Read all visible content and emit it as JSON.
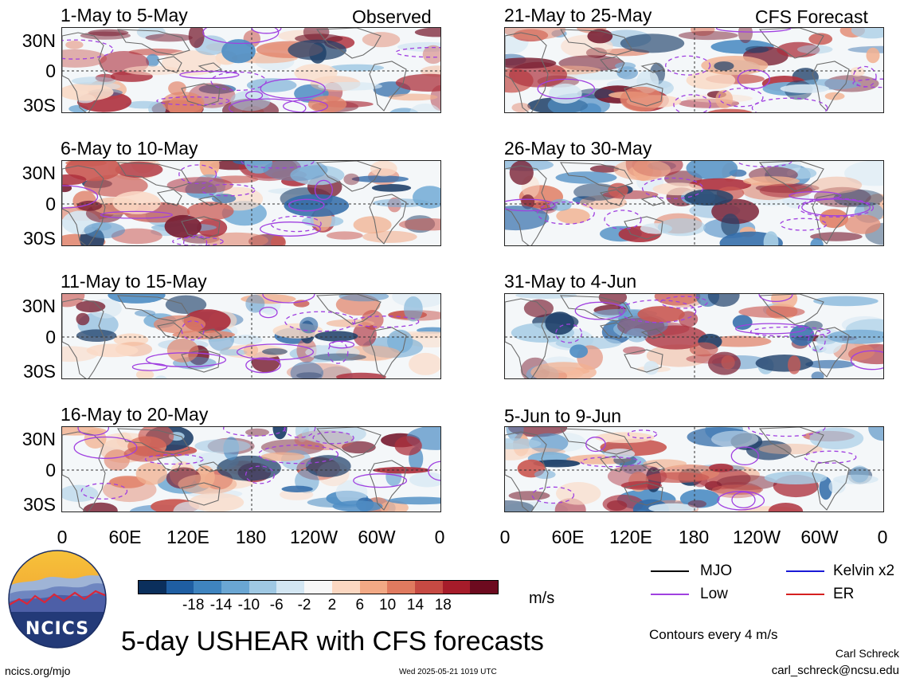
{
  "panels": [
    {
      "title": "1-May to 5-May",
      "corner": "Observed"
    },
    {
      "title": "6-May to 10-May",
      "corner": ""
    },
    {
      "title": "11-May to 15-May",
      "corner": ""
    },
    {
      "title": "16-May to 20-May",
      "corner": ""
    },
    {
      "title": "21-May to 25-May",
      "corner": "CFS Forecast"
    },
    {
      "title": "26-May to 30-May",
      "corner": ""
    },
    {
      "title": "31-May to 4-Jun",
      "corner": ""
    },
    {
      "title": "5-Jun to 9-Jun",
      "corner": ""
    }
  ],
  "lat_labels": [
    "30N",
    "0",
    "30S"
  ],
  "lon_labels": [
    "0",
    "60E",
    "120E",
    "180",
    "120W",
    "60W",
    "0"
  ],
  "colorbar": {
    "colors": [
      "#0b2f5c",
      "#1f5ea2",
      "#3f84bf",
      "#6aa6d3",
      "#9fc8e3",
      "#d3e6f2",
      "#f7f7f7",
      "#fbd7c1",
      "#f2a985",
      "#e07a5f",
      "#c64a43",
      "#a61c2a",
      "#6d0a1f"
    ],
    "labels": [
      "-18",
      "-14",
      "-10",
      "-6",
      "-2",
      "2",
      "6",
      "10",
      "14",
      "18"
    ],
    "units": "m/s"
  },
  "legend": {
    "items": [
      {
        "label": "MJO",
        "color": "#000000"
      },
      {
        "label": "Kelvin x2",
        "color": "#1a1ad6"
      },
      {
        "label": "Low",
        "color": "#a040e0"
      },
      {
        "label": "ER",
        "color": "#d62020"
      }
    ],
    "contours_note": "Contours every 4 m/s"
  },
  "logo_text": "NCICS",
  "main_title": "5-day USHEAR with CFS forecasts",
  "author": "Carl Schreck",
  "email": "carl_schreck@ncsu.edu",
  "website": "ncics.org/mjo",
  "timestamp": "Wed 2025-05-21 1019 UTC"
}
